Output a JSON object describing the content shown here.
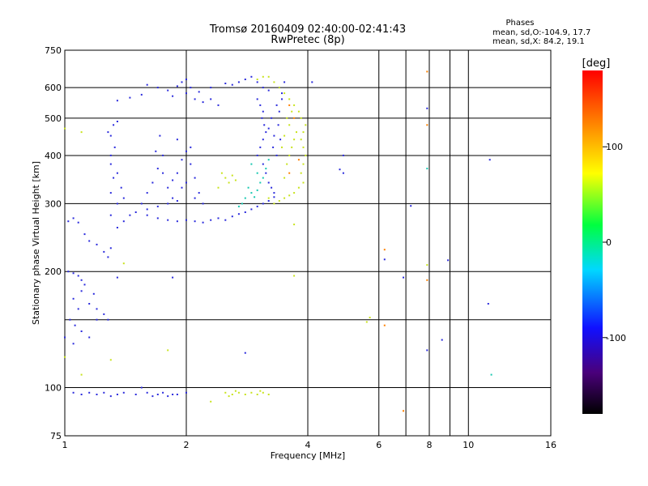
{
  "chart_data": {
    "type": "scatter",
    "title": "Tromsø 20160409 02:40:00-02:41:43",
    "subtitle": "RwPretec (8p)",
    "xlabel": "Frequency [MHz]",
    "ylabel": "Stationary phase Virtual Height [km]",
    "xscale": "log",
    "yscale": "log",
    "xlim": [
      1,
      16
    ],
    "ylim": [
      75,
      750
    ],
    "grid": true,
    "x_major_ticks": [
      1,
      2,
      4,
      8,
      16
    ],
    "x_major_tick_labels": [
      "1",
      "2",
      "4",
      "8",
      "16"
    ],
    "x_minor_ticks": [
      6,
      10
    ],
    "x_minor_tick_labels": [
      "6",
      "10"
    ],
    "y_ticks": [
      75,
      100,
      200,
      300,
      400,
      500,
      600,
      750
    ],
    "y_tick_labels": [
      "75",
      "100",
      "200",
      "300",
      "400",
      "500",
      "600",
      "750"
    ],
    "stats": {
      "heading": "Phases",
      "o_line": "mean, sd,O:-104.9, 17.7",
      "x_line": "mean, sd,X:  84.2, 19.1"
    },
    "colorbar": {
      "label": "[deg]",
      "range": [
        -180,
        180
      ],
      "ticks": [
        100,
        0,
        -100
      ],
      "tick_labels": [
        "100",
        "0",
        "-100"
      ]
    },
    "series": [
      {
        "description": "blue/purple echo cloud",
        "color": "#2a2adc",
        "points": [
          [
            1.02,
            200
          ],
          [
            1.05,
            198
          ],
          [
            1.08,
            195
          ],
          [
            1.1,
            190
          ],
          [
            1.12,
            185
          ],
          [
            1.05,
            170
          ],
          [
            1.08,
            160
          ],
          [
            1.03,
            150
          ],
          [
            1.06,
            145
          ],
          [
            1.1,
            140
          ],
          [
            1.15,
            135
          ],
          [
            1.05,
            130
          ],
          [
            1.2,
            150
          ],
          [
            1.25,
            155
          ],
          [
            1.15,
            165
          ],
          [
            1.18,
            175
          ],
          [
            1.1,
            178
          ],
          [
            1.2,
            160
          ],
          [
            1.28,
            150
          ],
          [
            1.0,
            135
          ],
          [
            1.02,
            270
          ],
          [
            1.05,
            275
          ],
          [
            1.08,
            268
          ],
          [
            1.12,
            250
          ],
          [
            1.15,
            240
          ],
          [
            1.2,
            235
          ],
          [
            1.25,
            225
          ],
          [
            1.28,
            218
          ],
          [
            1.3,
            230
          ],
          [
            1.35,
            260
          ],
          [
            1.4,
            270
          ],
          [
            1.45,
            280
          ],
          [
            1.5,
            285
          ],
          [
            1.6,
            280
          ],
          [
            1.7,
            275
          ],
          [
            1.8,
            272
          ],
          [
            1.9,
            270
          ],
          [
            2.0,
            272
          ],
          [
            2.1,
            270
          ],
          [
            2.2,
            268
          ],
          [
            2.3,
            272
          ],
          [
            2.4,
            275
          ],
          [
            2.5,
            272
          ],
          [
            2.6,
            278
          ],
          [
            2.7,
            282
          ],
          [
            2.8,
            285
          ],
          [
            2.9,
            290
          ],
          [
            3.0,
            295
          ],
          [
            3.1,
            300
          ],
          [
            3.2,
            305
          ],
          [
            3.3,
            312
          ],
          [
            1.3,
            280
          ],
          [
            1.35,
            300
          ],
          [
            1.3,
            320
          ],
          [
            1.32,
            350
          ],
          [
            1.3,
            380
          ],
          [
            1.33,
            420
          ],
          [
            1.3,
            450
          ],
          [
            1.32,
            480
          ],
          [
            1.35,
            490
          ],
          [
            1.28,
            460
          ],
          [
            1.3,
            400
          ],
          [
            1.35,
            360
          ],
          [
            1.38,
            330
          ],
          [
            1.4,
            310
          ],
          [
            1.55,
            300
          ],
          [
            1.6,
            320
          ],
          [
            1.65,
            340
          ],
          [
            1.7,
            370
          ],
          [
            1.75,
            400
          ],
          [
            1.8,
            330
          ],
          [
            1.85,
            310
          ],
          [
            1.9,
            360
          ],
          [
            1.95,
            390
          ],
          [
            2.0,
            410
          ],
          [
            2.05,
            380
          ],
          [
            2.1,
            350
          ],
          [
            2.15,
            320
          ],
          [
            2.2,
            300
          ],
          [
            1.6,
            290
          ],
          [
            1.7,
            295
          ],
          [
            1.8,
            300
          ],
          [
            1.9,
            305
          ],
          [
            2.0,
            340
          ],
          [
            1.75,
            360
          ],
          [
            1.85,
            345
          ],
          [
            1.95,
            330
          ],
          [
            2.05,
            420
          ],
          [
            2.1,
            310
          ],
          [
            1.68,
            410
          ],
          [
            1.72,
            450
          ],
          [
            1.9,
            440
          ],
          [
            1.6,
            610
          ],
          [
            1.7,
            600
          ],
          [
            1.8,
            590
          ],
          [
            1.9,
            605
          ],
          [
            2.0,
            580
          ],
          [
            2.1,
            560
          ],
          [
            2.2,
            550
          ],
          [
            2.3,
            560
          ],
          [
            2.4,
            540
          ],
          [
            1.95,
            620
          ],
          [
            2.0,
            630
          ],
          [
            2.05,
            600
          ],
          [
            1.85,
            570
          ],
          [
            2.15,
            585
          ],
          [
            1.55,
            575
          ],
          [
            1.45,
            565
          ],
          [
            1.35,
            555
          ],
          [
            2.3,
            600
          ],
          [
            2.5,
            615
          ],
          [
            2.6,
            610
          ],
          [
            2.7,
            620
          ],
          [
            2.8,
            630
          ],
          [
            2.9,
            640
          ],
          [
            3.0,
            620
          ],
          [
            3.1,
            600
          ],
          [
            3.2,
            590
          ],
          [
            3.0,
            560
          ],
          [
            3.05,
            540
          ],
          [
            3.1,
            520
          ],
          [
            3.08,
            500
          ],
          [
            3.12,
            480
          ],
          [
            3.15,
            460
          ],
          [
            3.1,
            440
          ],
          [
            3.05,
            420
          ],
          [
            3.0,
            400
          ],
          [
            3.1,
            380
          ],
          [
            3.15,
            360
          ],
          [
            3.2,
            340
          ],
          [
            3.25,
            330
          ],
          [
            3.3,
            320
          ],
          [
            3.35,
            400
          ],
          [
            3.3,
            450
          ],
          [
            3.25,
            500
          ],
          [
            3.2,
            470
          ],
          [
            3.4,
            520
          ],
          [
            3.45,
            560
          ],
          [
            3.4,
            600
          ],
          [
            3.5,
            620
          ],
          [
            3.45,
            580
          ],
          [
            3.35,
            540
          ],
          [
            3.38,
            480
          ],
          [
            3.42,
            440
          ],
          [
            3.28,
            420
          ],
          [
            1.05,
            97
          ],
          [
            1.1,
            96
          ],
          [
            1.15,
            97
          ],
          [
            1.2,
            96
          ],
          [
            1.25,
            97
          ],
          [
            1.3,
            95
          ],
          [
            1.35,
            96
          ],
          [
            1.4,
            97
          ],
          [
            1.5,
            96
          ],
          [
            1.6,
            97
          ],
          [
            1.7,
            96
          ],
          [
            1.8,
            95
          ],
          [
            1.9,
            96
          ],
          [
            2.0,
            97
          ],
          [
            1.55,
            100
          ],
          [
            1.65,
            95
          ],
          [
            1.75,
            97
          ],
          [
            1.85,
            96
          ],
          [
            1.35,
            193
          ],
          [
            1.85,
            193
          ],
          [
            2.8,
            123
          ],
          [
            4.1,
            620
          ],
          [
            4.9,
            400
          ],
          [
            4.9,
            360
          ],
          [
            4.8,
            368
          ],
          [
            7.9,
            530
          ],
          [
            7.9,
            125
          ],
          [
            8.6,
            133
          ],
          [
            11.3,
            390
          ],
          [
            11.2,
            165
          ],
          [
            6.9,
            193
          ],
          [
            8.9,
            214
          ],
          [
            7.2,
            296
          ],
          [
            6.2,
            215
          ]
        ]
      },
      {
        "description": "cyan/green echoes",
        "color": "#17c8b0",
        "points": [
          [
            2.85,
            330
          ],
          [
            2.9,
            320
          ],
          [
            2.95,
            312
          ],
          [
            3.0,
            325
          ],
          [
            3.05,
            340
          ],
          [
            2.8,
            310
          ],
          [
            2.75,
            300
          ],
          [
            2.7,
            295
          ],
          [
            3.1,
            350
          ],
          [
            3.15,
            370
          ],
          [
            3.2,
            390
          ],
          [
            3.0,
            360
          ],
          [
            2.9,
            380
          ],
          [
            7.9,
            370
          ],
          [
            11.4,
            108
          ]
        ]
      },
      {
        "description": "yellow/green echoes",
        "color": "#c8e31c",
        "points": [
          [
            3.2,
            310
          ],
          [
            3.3,
            300
          ],
          [
            3.4,
            305
          ],
          [
            3.5,
            310
          ],
          [
            3.6,
            315
          ],
          [
            3.7,
            320
          ],
          [
            3.8,
            330
          ],
          [
            3.9,
            340
          ],
          [
            3.85,
            360
          ],
          [
            3.9,
            380
          ],
          [
            3.95,
            400
          ],
          [
            3.9,
            420
          ],
          [
            3.85,
            440
          ],
          [
            3.9,
            460
          ],
          [
            3.95,
            480
          ],
          [
            3.85,
            500
          ],
          [
            3.8,
            520
          ],
          [
            3.7,
            540
          ],
          [
            3.6,
            560
          ],
          [
            3.5,
            580
          ],
          [
            3.4,
            600
          ],
          [
            3.3,
            620
          ],
          [
            3.2,
            640
          ],
          [
            3.1,
            640
          ],
          [
            3.0,
            630
          ],
          [
            3.5,
            350
          ],
          [
            3.55,
            380
          ],
          [
            3.6,
            400
          ],
          [
            3.65,
            420
          ],
          [
            3.7,
            440
          ],
          [
            3.75,
            460
          ],
          [
            3.6,
            480
          ],
          [
            3.55,
            500
          ],
          [
            3.65,
            520
          ],
          [
            3.45,
            420
          ],
          [
            3.5,
            450
          ],
          [
            2.45,
            360
          ],
          [
            2.5,
            350
          ],
          [
            2.55,
            340
          ],
          [
            2.6,
            355
          ],
          [
            2.65,
            345
          ],
          [
            2.4,
            330
          ],
          [
            2.5,
            97
          ],
          [
            2.6,
            96
          ],
          [
            2.7,
            97
          ],
          [
            2.8,
            96
          ],
          [
            2.9,
            97
          ],
          [
            3.0,
            96
          ],
          [
            3.1,
            97
          ],
          [
            3.2,
            96
          ],
          [
            2.55,
            95
          ],
          [
            2.65,
            98
          ],
          [
            3.05,
            98
          ],
          [
            1.0,
            120
          ],
          [
            1.1,
            108
          ],
          [
            1.4,
            210
          ],
          [
            1.3,
            118
          ],
          [
            1.8,
            125
          ],
          [
            2.3,
            92
          ],
          [
            3.7,
            265
          ],
          [
            3.7,
            195
          ],
          [
            5.7,
            152
          ],
          [
            5.6,
            148
          ],
          [
            7.9,
            208
          ],
          [
            1.0,
            470
          ],
          [
            1.1,
            460
          ]
        ]
      },
      {
        "description": "orange/red echoes",
        "color": "#ff8000",
        "points": [
          [
            3.6,
            360
          ],
          [
            3.7,
            500
          ],
          [
            3.6,
            540
          ],
          [
            3.8,
            390
          ],
          [
            6.2,
            228
          ],
          [
            7.9,
            660
          ],
          [
            7.9,
            190
          ],
          [
            7.9,
            480
          ],
          [
            6.2,
            145
          ],
          [
            6.9,
            87
          ]
        ]
      }
    ]
  }
}
